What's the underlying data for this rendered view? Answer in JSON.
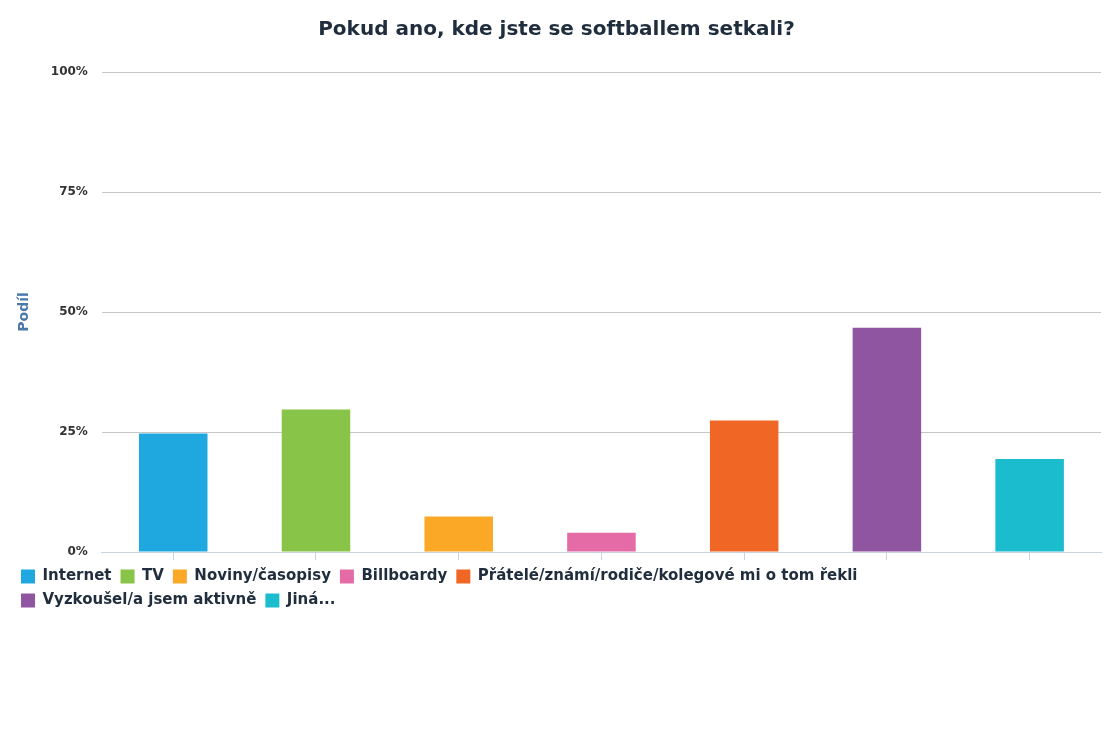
{
  "chart_data": {
    "type": "bar",
    "title": "Pokud ano, kde jste se softballem setkali?",
    "ylabel": "Podíl",
    "categories": [
      null,
      null,
      null,
      null,
      null,
      null,
      null
    ],
    "series": [
      {
        "name": "Internet",
        "color": "#1fa8e0",
        "values": [
          24.7,
          null,
          null,
          null,
          null,
          null,
          null
        ]
      },
      {
        "name": "TV",
        "color": "#88c448",
        "values": [
          null,
          29.7,
          null,
          null,
          null,
          null,
          null
        ]
      },
      {
        "name": "Noviny/časopisy",
        "color": "#fba826",
        "values": [
          null,
          null,
          7.4,
          null,
          null,
          null,
          null
        ]
      },
      {
        "name": "Billboardy",
        "color": "#e56ba6",
        "values": [
          null,
          null,
          null,
          4.0,
          null,
          null,
          null
        ]
      },
      {
        "name": "Přátelé/známí/rodiče/kolegové mi o tom řekli",
        "color": "#f06624",
        "values": [
          null,
          null,
          null,
          null,
          27.4,
          null,
          null
        ]
      },
      {
        "name": "Vyzkoušel/a jsem aktivně",
        "color": "#8f55a0",
        "values": [
          null,
          null,
          null,
          null,
          null,
          46.7,
          null
        ]
      },
      {
        "name": "Jiná...",
        "color": "#1bbccd",
        "values": [
          null,
          null,
          null,
          null,
          null,
          null,
          19.4
        ]
      }
    ],
    "ylim": [
      0,
      100
    ],
    "yticks": [
      {
        "value": 0,
        "label": "0%"
      },
      {
        "value": 25,
        "label": "25%"
      },
      {
        "value": 50,
        "label": "50%"
      },
      {
        "value": 75,
        "label": "75%"
      },
      {
        "value": 100,
        "label": "100%"
      }
    ],
    "grid": "y",
    "legend": "bottom left",
    "tick_labels": "y"
  }
}
